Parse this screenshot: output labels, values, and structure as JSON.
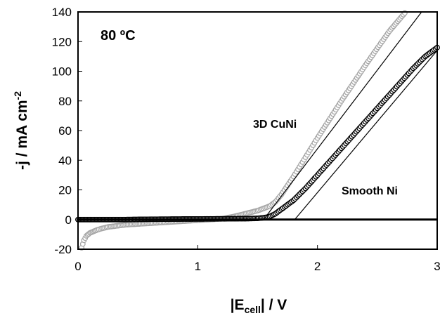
{
  "chart_data": {
    "type": "scatter",
    "title": "",
    "annotations": {
      "temperature": "80 ºC"
    },
    "xlabel": {
      "main": "|E",
      "sub": "cell",
      "rest": "| / V"
    },
    "ylabel": {
      "main": "-j / mA cm",
      "sup": "-2"
    },
    "xlim": [
      0,
      3
    ],
    "ylim": [
      -20,
      140
    ],
    "xticks": [
      0,
      1,
      2,
      3
    ],
    "yticks": [
      -20,
      0,
      20,
      40,
      60,
      80,
      100,
      120,
      140
    ],
    "grid": false,
    "legend": "none",
    "series": [
      {
        "name": "3D CuNi",
        "marker_color": "#a6a6a6",
        "x": [
          0.03,
          0.05,
          0.07,
          0.1,
          0.13,
          0.16,
          0.2,
          0.25,
          0.3,
          0.35,
          0.4,
          0.5,
          0.6,
          0.7,
          0.8,
          0.9,
          1.0,
          1.1,
          1.2,
          1.3,
          1.4,
          1.5,
          1.55,
          1.6,
          1.65,
          1.7,
          1.8,
          1.9,
          2.0,
          2.2,
          2.4,
          2.6,
          2.8,
          2.87
        ],
        "y": [
          -19,
          -14,
          -11,
          -9,
          -8,
          -7,
          -6,
          -5,
          -4.5,
          -4,
          -3.5,
          -3,
          -2.5,
          -2,
          -1.5,
          -1,
          -0.5,
          0,
          0.5,
          2,
          4,
          6,
          7.5,
          9,
          12,
          17,
          29,
          42,
          55,
          80,
          104,
          127,
          146,
          149
        ]
      },
      {
        "name": "Smooth Ni",
        "marker_color": "#000000",
        "x": [
          0,
          0.2,
          0.4,
          0.6,
          0.8,
          1.0,
          1.2,
          1.4,
          1.5,
          1.55,
          1.6,
          1.65,
          1.7,
          1.75,
          1.8,
          1.85,
          1.9,
          2.0,
          2.1,
          2.2,
          2.3,
          2.4,
          2.5,
          2.6,
          2.7,
          2.8,
          2.9,
          3.0
        ],
        "y": [
          0,
          0,
          0,
          0.2,
          0.3,
          0.4,
          0.5,
          0.6,
          0.8,
          1.2,
          2,
          4,
          7,
          10,
          13,
          17,
          21,
          30,
          39,
          48,
          57,
          66,
          75,
          84,
          93,
          102,
          110,
          116
        ]
      }
    ],
    "fit_lines": [
      {
        "for": "3D CuNi",
        "x": [
          1.55,
          2.87
        ],
        "y": [
          0,
          140
        ]
      },
      {
        "for": "Smooth Ni",
        "x": [
          1.81,
          3.0
        ],
        "y": [
          0,
          114
        ]
      }
    ],
    "zero_line": true
  }
}
